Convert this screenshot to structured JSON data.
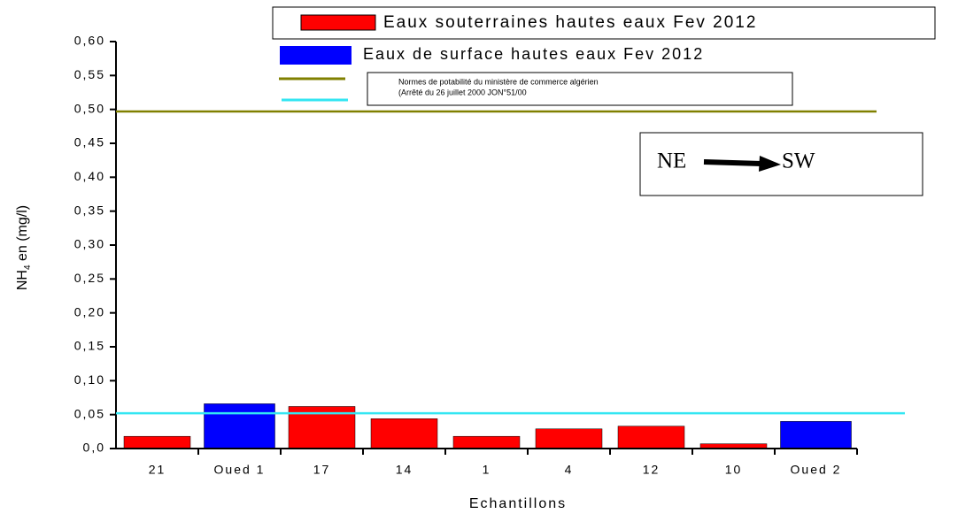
{
  "chart_data": {
    "type": "bar",
    "categories": [
      "21",
      "Oued 1",
      "17",
      "14",
      "1",
      "4",
      "12",
      "10",
      "Oued 2"
    ],
    "series": [
      {
        "name": "Eaux souterraines hautes eaux Fev 2012",
        "color": "#ff0000",
        "values": [
          0.018,
          null,
          0.062,
          0.044,
          0.018,
          0.029,
          0.033,
          0.007,
          null
        ]
      },
      {
        "name": "Eaux de surface hautes eaux Fev 2012",
        "color": "#0000ff",
        "values": [
          null,
          0.066,
          null,
          null,
          null,
          null,
          null,
          null,
          0.04
        ]
      }
    ],
    "reference_lines": [
      {
        "value": 0.497,
        "color": "#808000"
      },
      {
        "value": 0.052,
        "color": "#33e6f2"
      }
    ],
    "reference_label": [
      "Normes de potabilité du ministère de commerce algérien",
      "(Arrêté du 26 juillet 2000 JON°51/00"
    ],
    "annotation": [
      "NE",
      "SW"
    ],
    "x_label": "Echantillons",
    "y_label": [
      "NH",
      "4",
      " en (mg/l)"
    ],
    "ylim": [
      0,
      0.6
    ],
    "yticks": [
      {
        "value": 0,
        "label": "0,0"
      },
      {
        "value": 0.05,
        "label": "0,05"
      },
      {
        "value": 0.1,
        "label": "0,10"
      },
      {
        "value": 0.15,
        "label": "0,15"
      },
      {
        "value": 0.2,
        "label": "0,20"
      },
      {
        "value": 0.25,
        "label": "0,25"
      },
      {
        "value": 0.3,
        "label": "0,30"
      },
      {
        "value": 0.35,
        "label": "0,35"
      },
      {
        "value": 0.4,
        "label": "0,40"
      },
      {
        "value": 0.45,
        "label": "0,45"
      },
      {
        "value": 0.5,
        "label": "0,50"
      },
      {
        "value": 0.55,
        "label": "0,55"
      },
      {
        "value": 0.6,
        "label": "0,60"
      }
    ]
  }
}
